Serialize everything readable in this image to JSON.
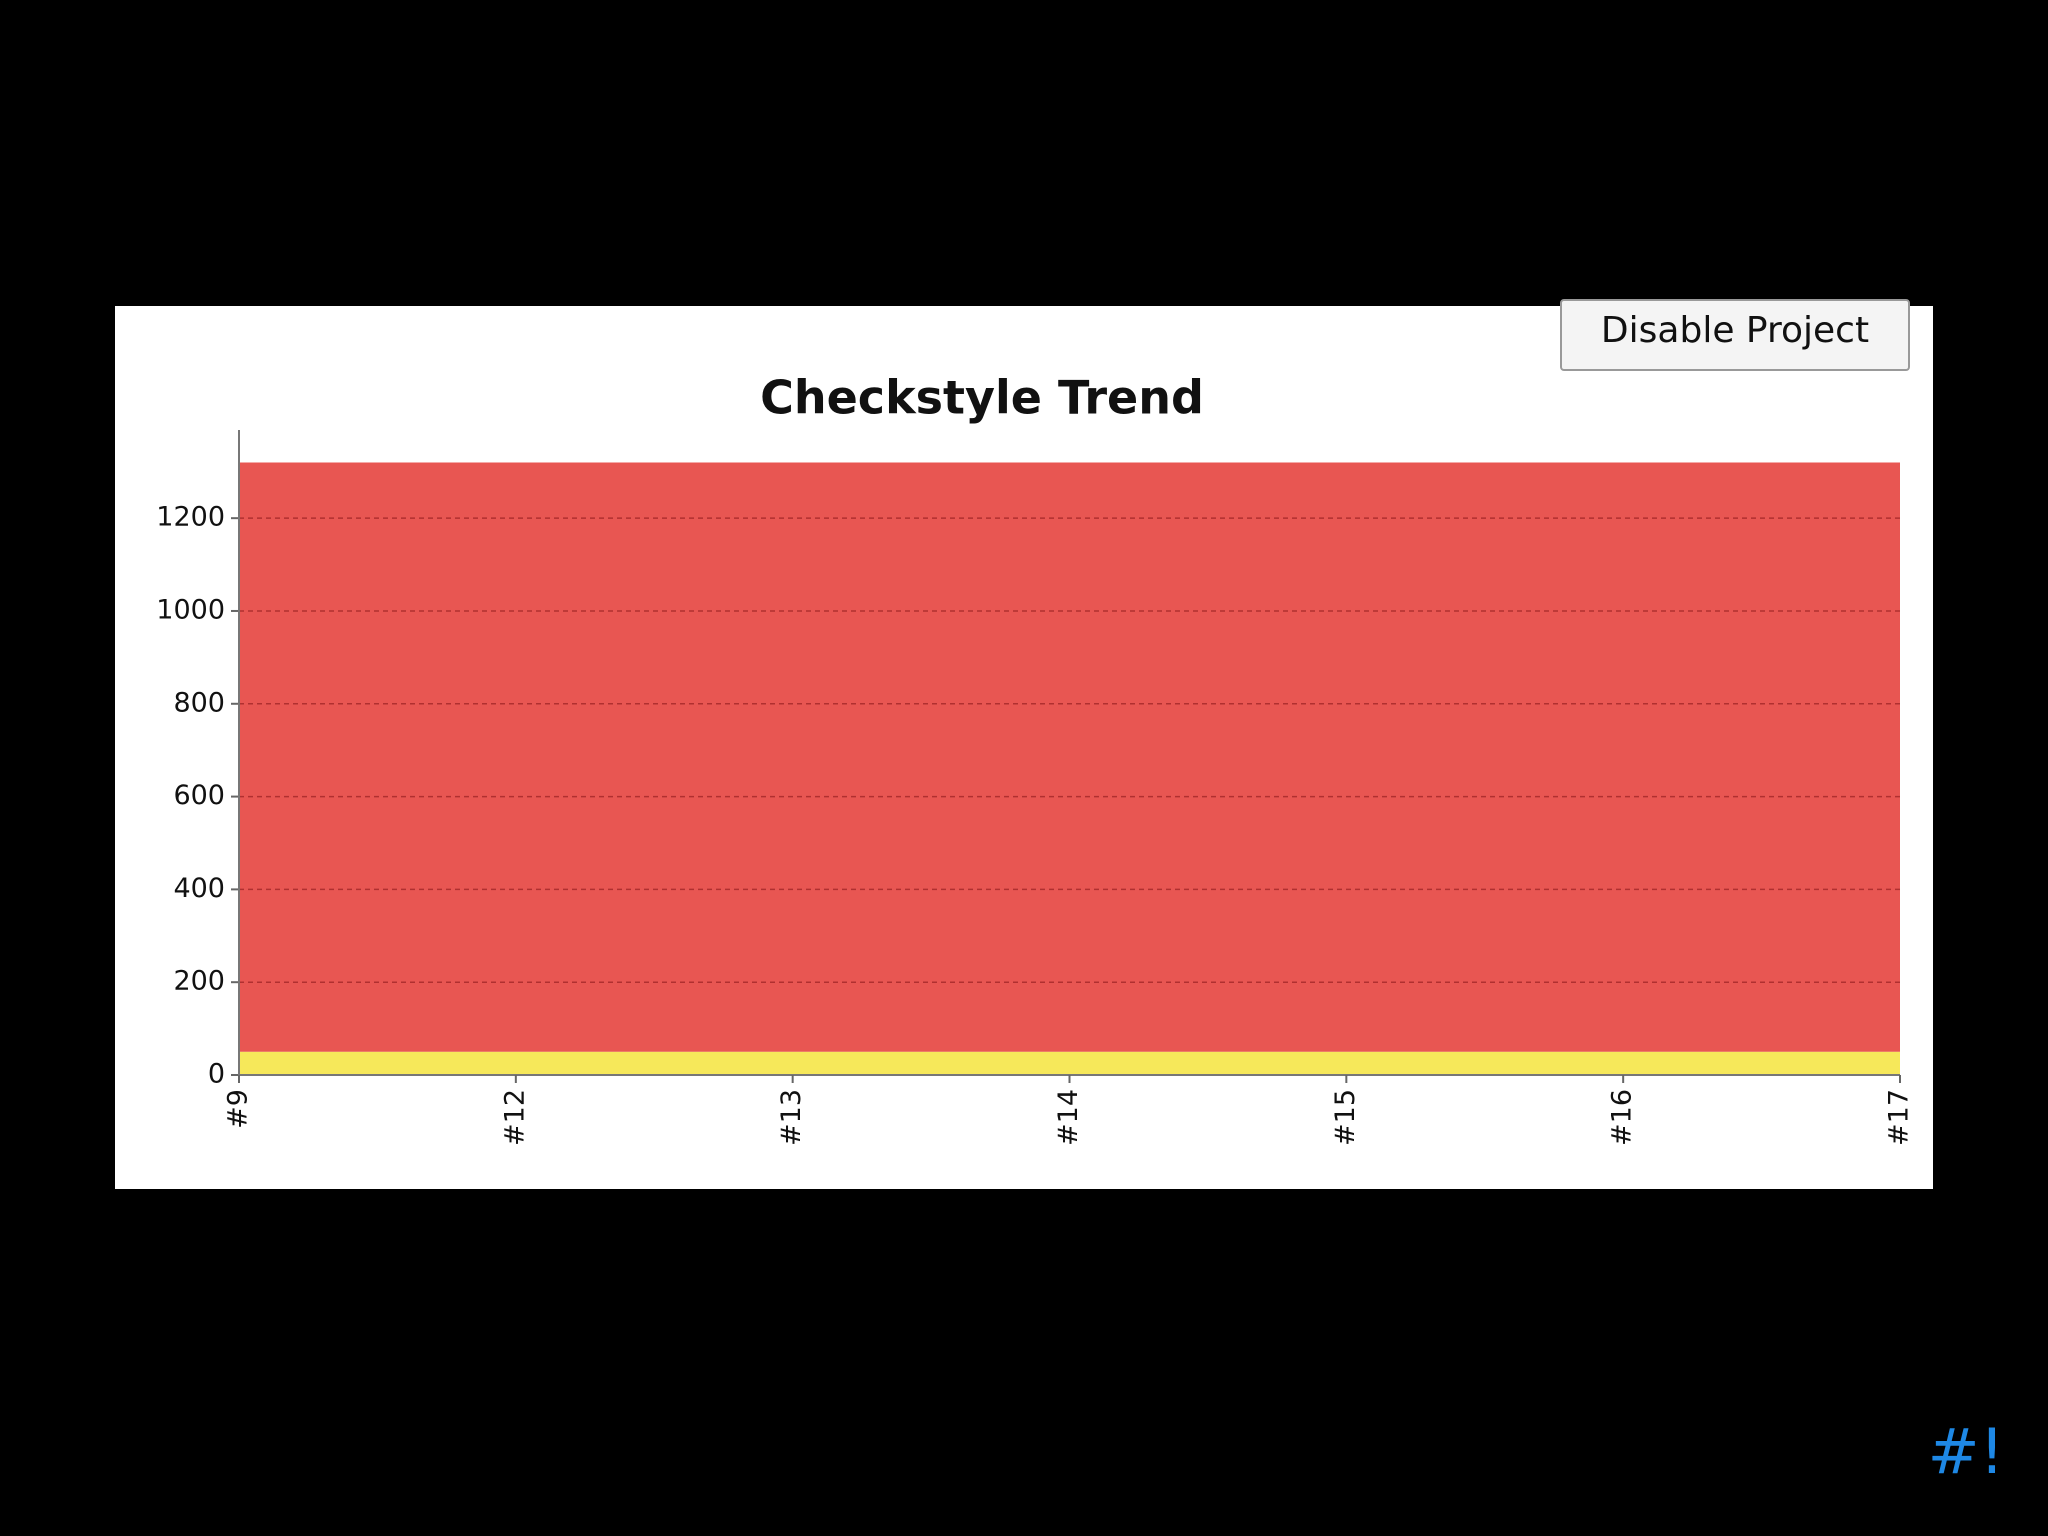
{
  "button": "Disable Project",
  "slide_mark": "#!",
  "chart_data": {
    "type": "area",
    "stacked": true,
    "title": "Checkstyle Trend",
    "categories": [
      "#9",
      "#12",
      "#13",
      "#14",
      "#15",
      "#16",
      "#17"
    ],
    "series": [
      {
        "color": "#f6e85a",
        "values": [
          50,
          50,
          50,
          50,
          50,
          50,
          50
        ]
      },
      {
        "color": "#e85652",
        "values": [
          1270,
          1270,
          1270,
          1270,
          1270,
          1270,
          1270
        ]
      }
    ],
    "ylim": [
      0,
      1390
    ],
    "yticks": [
      0,
      200,
      400,
      600,
      800,
      1000,
      1200
    ],
    "grid": true
  }
}
